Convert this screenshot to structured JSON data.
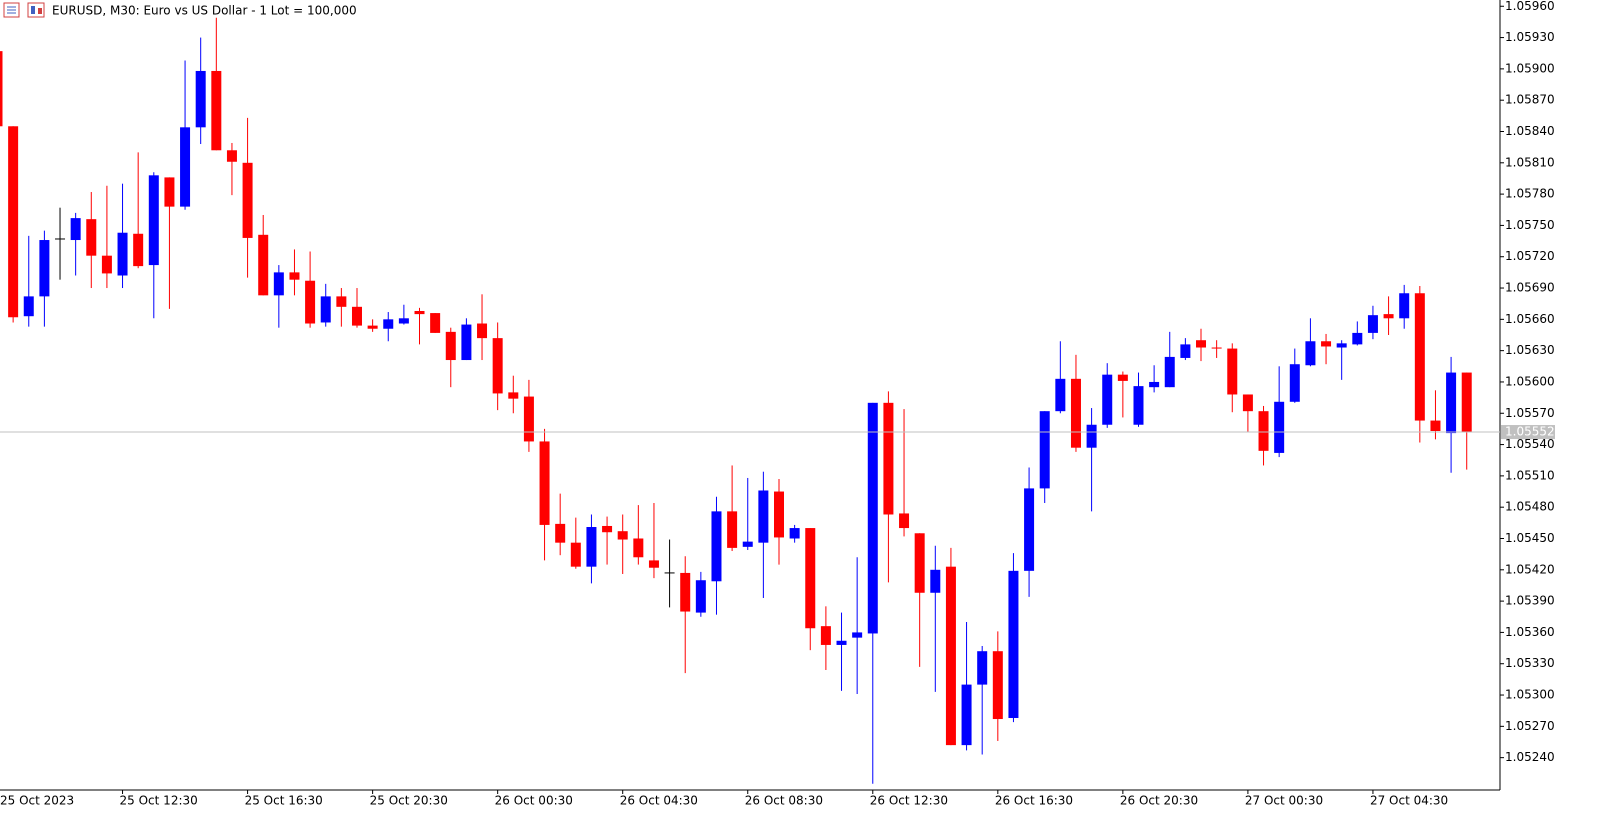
{
  "chart_data": {
    "type": "candlestick",
    "title": "EURUSD, M30:  Euro vs US Dollar - 1 Lot = 100,000",
    "categories": [
      "25 Oct 2023",
      null,
      null,
      null,
      null,
      null,
      null,
      null,
      "25 Oct 12:30",
      null,
      null,
      null,
      null,
      null,
      null,
      null,
      "25 Oct 16:30",
      null,
      null,
      null,
      null,
      null,
      null,
      null,
      "25 Oct 20:30",
      null,
      null,
      null,
      null,
      null,
      null,
      null,
      "26 Oct 00:30",
      null,
      null,
      null,
      null,
      null,
      null,
      null,
      "26 Oct 04:30",
      null,
      null,
      null,
      null,
      null,
      null,
      null,
      "26 Oct 08:30",
      null,
      null,
      null,
      null,
      null,
      null,
      null,
      "26 Oct 12:30",
      null,
      null,
      null,
      null,
      null,
      null,
      null,
      "26 Oct 16:30",
      null,
      null,
      null,
      null,
      null,
      null,
      null,
      "26 Oct 20:30",
      null,
      null,
      null,
      null,
      null,
      null,
      null,
      "27 Oct 00:30",
      null,
      null,
      null,
      null,
      null,
      null,
      null,
      "27 Oct 04:30",
      null,
      null,
      null,
      null,
      null,
      null
    ],
    "open": [
      1.05917,
      1.05845,
      1.05663,
      1.05682,
      1.05737,
      1.05736,
      1.05756,
      1.05721,
      1.05702,
      1.05742,
      1.05712,
      1.05796,
      1.05768,
      1.05844,
      1.05898,
      1.05822,
      1.0581,
      1.05741,
      1.05683,
      1.05705,
      1.05697,
      1.05657,
      1.05682,
      1.05672,
      1.05654,
      1.05651,
      1.05656,
      1.05668,
      1.05666,
      1.05648,
      1.05621,
      1.05656,
      1.05642,
      1.0559,
      1.05586,
      1.05543,
      1.05464,
      1.05446,
      1.05423,
      1.05462,
      1.05457,
      1.0545,
      1.05429,
      1.05417,
      1.05417,
      1.05379,
      1.05409,
      1.05476,
      1.05442,
      1.05446,
      1.05495,
      1.0545,
      1.0546,
      1.05366,
      1.05348,
      1.05355,
      1.05359,
      1.0558,
      1.05474,
      1.05455,
      1.05398,
      1.05423,
      1.05252,
      1.0531,
      1.05342,
      1.05278,
      1.05419,
      1.05498,
      1.05572,
      1.05603,
      1.05537,
      1.05559,
      1.05607,
      1.05559,
      1.05595,
      1.05595,
      1.05623,
      1.0564,
      1.05633,
      1.05632,
      1.05588,
      1.05572,
      1.05532,
      1.05581,
      1.05616,
      1.05639,
      1.05633,
      1.05636,
      1.05647,
      1.05665,
      1.05661,
      1.05685,
      1.05563,
      1.05551,
      1.05609
    ],
    "high": [
      1.0592,
      1.05845,
      1.0574,
      1.05745,
      1.05767,
      1.05762,
      1.05782,
      1.05788,
      1.0579,
      1.0582,
      1.05801,
      1.05796,
      1.05908,
      1.0593,
      1.05949,
      1.05829,
      1.05853,
      1.0576,
      1.05712,
      1.05727,
      1.05725,
      1.05694,
      1.0569,
      1.0569,
      1.0566,
      1.05667,
      1.05674,
      1.05671,
      1.05666,
      1.05652,
      1.05661,
      1.05684,
      1.05657,
      1.05606,
      1.05602,
      1.05555,
      1.05493,
      1.0547,
      1.05473,
      1.05471,
      1.05473,
      1.05482,
      1.05484,
      1.05449,
      1.05433,
      1.05418,
      1.0549,
      1.0552,
      1.05508,
      1.05514,
      1.05507,
      1.05463,
      1.0546,
      1.05385,
      1.05379,
      1.05432,
      1.0558,
      1.05591,
      1.05574,
      1.05455,
      1.05443,
      1.05441,
      1.0537,
      1.05347,
      1.05361,
      1.05436,
      1.05518,
      1.05572,
      1.05639,
      1.05626,
      1.05575,
      1.05618,
      1.0561,
      1.05609,
      1.05616,
      1.05648,
      1.05642,
      1.05651,
      1.0564,
      1.05637,
      1.05588,
      1.05577,
      1.05615,
      1.05632,
      1.05661,
      1.05646,
      1.0564,
      1.05658,
      1.05673,
      1.05682,
      1.05693,
      1.05692,
      1.05592,
      1.05624,
      1.05609
    ],
    "low": [
      1.05842,
      1.05657,
      1.05653,
      1.05653,
      1.05698,
      1.05702,
      1.0569,
      1.0569,
      1.0569,
      1.05709,
      1.05661,
      1.0567,
      1.05765,
      1.05828,
      1.05822,
      1.05779,
      1.057,
      1.05683,
      1.05652,
      1.05683,
      1.05652,
      1.05653,
      1.05653,
      1.05652,
      1.05648,
      1.05639,
      1.05655,
      1.05636,
      1.05647,
      1.05595,
      1.05621,
      1.05621,
      1.05573,
      1.0557,
      1.05533,
      1.05429,
      1.05434,
      1.05421,
      1.05407,
      1.05425,
      1.05416,
      1.05425,
      1.05412,
      1.05384,
      1.05321,
      1.05375,
      1.05377,
      1.05438,
      1.05439,
      1.05393,
      1.05425,
      1.05446,
      1.05343,
      1.05324,
      1.05304,
      1.05301,
      1.05215,
      1.05408,
      1.05452,
      1.05327,
      1.05303,
      1.05252,
      1.05247,
      1.05243,
      1.05256,
      1.05274,
      1.05394,
      1.05484,
      1.0557,
      1.05533,
      1.05476,
      1.05556,
      1.05566,
      1.05557,
      1.0559,
      1.05595,
      1.05621,
      1.0562,
      1.05623,
      1.05571,
      1.05552,
      1.0552,
      1.05528,
      1.0558,
      1.05615,
      1.05617,
      1.05602,
      1.05635,
      1.05641,
      1.05645,
      1.05651,
      1.05542,
      1.05545,
      1.05513,
      1.05516
    ],
    "close": [
      1.05845,
      1.05662,
      1.05682,
      1.05736,
      1.05737,
      1.05757,
      1.05721,
      1.05704,
      1.05743,
      1.05711,
      1.05798,
      1.05768,
      1.05844,
      1.05898,
      1.05822,
      1.05811,
      1.05738,
      1.05683,
      1.05705,
      1.05698,
      1.05656,
      1.05682,
      1.05672,
      1.05654,
      1.05651,
      1.0566,
      1.05661,
      1.05665,
      1.05647,
      1.05621,
      1.05655,
      1.05642,
      1.05589,
      1.05584,
      1.05543,
      1.05463,
      1.05446,
      1.05423,
      1.05461,
      1.05456,
      1.05449,
      1.05432,
      1.05422,
      1.05417,
      1.0538,
      1.0541,
      1.05476,
      1.05441,
      1.05447,
      1.05496,
      1.05451,
      1.0546,
      1.05364,
      1.05348,
      1.05352,
      1.0536,
      1.0558,
      1.05473,
      1.0546,
      1.05398,
      1.0542,
      1.05252,
      1.0531,
      1.05342,
      1.05277,
      1.05419,
      1.05498,
      1.05572,
      1.05603,
      1.05537,
      1.05559,
      1.05607,
      1.05601,
      1.05596,
      1.056,
      1.05624,
      1.05636,
      1.05633,
      1.05632,
      1.05588,
      1.05572,
      1.05534,
      1.05581,
      1.05617,
      1.05639,
      1.05634,
      1.05637,
      1.05647,
      1.05664,
      1.05661,
      1.05685,
      1.05563,
      1.05553,
      1.05609,
      1.05552
    ],
    "up_color": "#0000ff",
    "down_color": "#ff0000",
    "doji_color": "#000000",
    "ylim": [
      1.05209,
      1.05966
    ],
    "yticks": [
      {
        "value": 1.0524,
        "label": "1.05240"
      },
      {
        "value": 1.0527,
        "label": "1.05270"
      },
      {
        "value": 1.053,
        "label": "1.05300"
      },
      {
        "value": 1.0533,
        "label": "1.05330"
      },
      {
        "value": 1.0536,
        "label": "1.05360"
      },
      {
        "value": 1.0539,
        "label": "1.05390"
      },
      {
        "value": 1.0542,
        "label": "1.05420"
      },
      {
        "value": 1.0545,
        "label": "1.05450"
      },
      {
        "value": 1.0548,
        "label": "1.05480"
      },
      {
        "value": 1.0551,
        "label": "1.05510"
      },
      {
        "value": 1.0554,
        "label": "1.05540"
      },
      {
        "value": 1.0557,
        "label": "1.05570"
      },
      {
        "value": 1.056,
        "label": "1.05600"
      },
      {
        "value": 1.0563,
        "label": "1.05630"
      },
      {
        "value": 1.0566,
        "label": "1.05660"
      },
      {
        "value": 1.0569,
        "label": "1.05690"
      },
      {
        "value": 1.0572,
        "label": "1.05720"
      },
      {
        "value": 1.0575,
        "label": "1.05750"
      },
      {
        "value": 1.0578,
        "label": "1.05780"
      },
      {
        "value": 1.0581,
        "label": "1.05810"
      },
      {
        "value": 1.0584,
        "label": "1.05840"
      },
      {
        "value": 1.0587,
        "label": "1.05870"
      },
      {
        "value": 1.059,
        "label": "1.05900"
      },
      {
        "value": 1.0593,
        "label": "1.05930"
      },
      {
        "value": 1.0596,
        "label": "1.05960"
      }
    ],
    "current_price": 1.05552,
    "current_price_color": "#c0c0c0"
  }
}
